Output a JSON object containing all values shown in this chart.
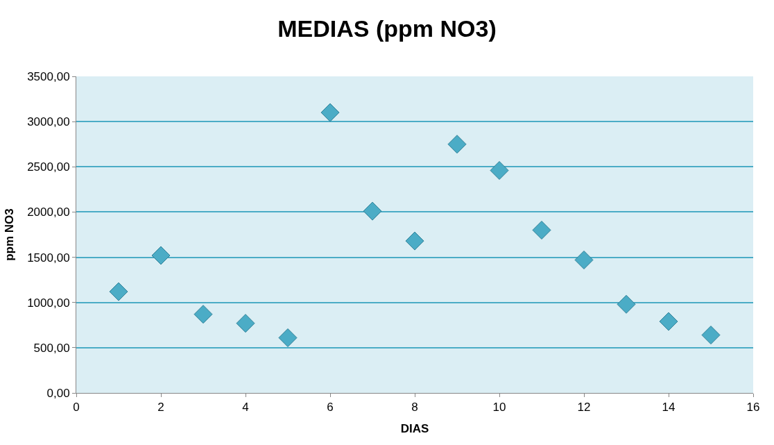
{
  "chart_data": {
    "type": "scatter",
    "title": "MEDIAS (ppm NO3)",
    "xlabel": "DIAS",
    "ylabel": "ppm NO3",
    "x": [
      1,
      2,
      3,
      4,
      5,
      6,
      7,
      8,
      9,
      10,
      11,
      12,
      13,
      14,
      15
    ],
    "series": [
      {
        "color": "#4bacc6",
        "values": [
          1120,
          1520,
          870,
          770,
          610,
          3100,
          2010,
          1680,
          2750,
          2460,
          1800,
          1470,
          980,
          790,
          640
        ]
      }
    ],
    "xlim": [
      0,
      16
    ],
    "xticks": [
      0,
      2,
      4,
      6,
      8,
      10,
      12,
      14,
      16
    ],
    "ylim": [
      0,
      3500
    ],
    "yticks": [
      {
        "value": 0,
        "label": "0,00"
      },
      {
        "value": 500,
        "label": "500,00"
      },
      {
        "value": 1000,
        "label": "1000,00"
      },
      {
        "value": 1500,
        "label": "1500,00"
      },
      {
        "value": 2000,
        "label": "2000,00"
      },
      {
        "value": 2500,
        "label": "2500,00"
      },
      {
        "value": 3000,
        "label": "3000,00"
      },
      {
        "value": 3500,
        "label": "3500,00"
      }
    ],
    "grid": "y",
    "marker": "diamond"
  }
}
